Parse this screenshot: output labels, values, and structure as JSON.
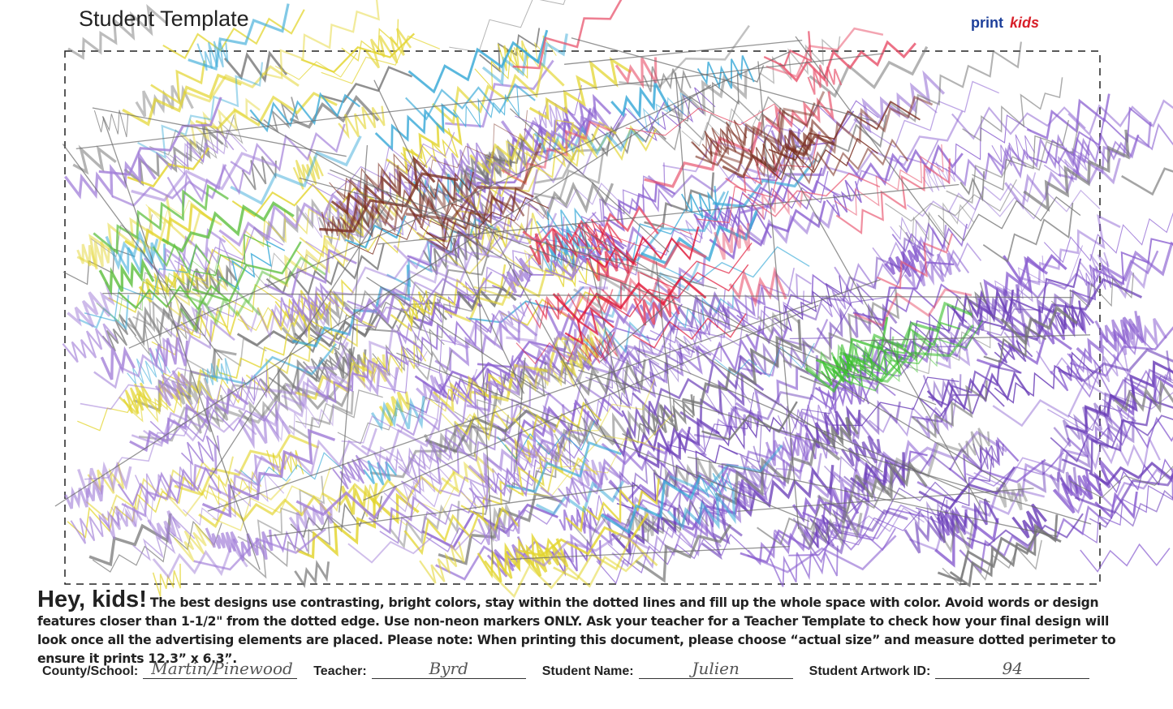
{
  "header": {
    "title": "Student Template",
    "logo": {
      "left": "print",
      "right": "kids"
    }
  },
  "instructions": {
    "heading": "Hey, kids!",
    "body": "The best designs use contrasting, bright colors, stay within the dotted lines and fill up the whole space with color. Avoid words or design features closer than 1-1/2\" from the dotted edge. Use non-neon markers ONLY. Ask your teacher for a Teacher Template to check how your final design will look once all the advertising elements are placed. Please note: When printing this document, please choose “actual size” and measure dotted perimeter to ensure it prints 12.3” x 6.3”."
  },
  "form": {
    "fields": [
      {
        "label": "County/School:",
        "value": "Martin/Pinewood"
      },
      {
        "label": "Teacher:",
        "value": "Byrd"
      },
      {
        "label": "Student Name:",
        "value": "Julien"
      },
      {
        "label": "Student Artwork ID:",
        "value": "94"
      }
    ]
  }
}
